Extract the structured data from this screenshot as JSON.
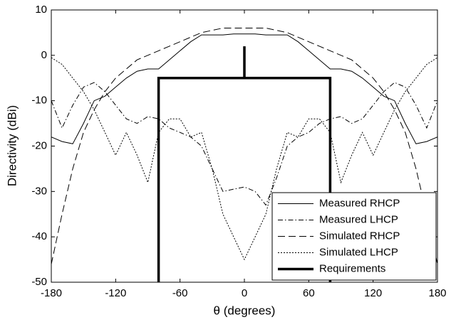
{
  "chart_data": {
    "type": "line",
    "xlabel": "θ (degrees)",
    "ylabel": "Directivity (dBi)",
    "xlim": [
      -180,
      180
    ],
    "ylim": [
      -50,
      10
    ],
    "xticks": [
      -180,
      -120,
      -60,
      0,
      60,
      120,
      180
    ],
    "yticks": [
      -50,
      -40,
      -30,
      -20,
      -10,
      0,
      10
    ],
    "grid": false,
    "legend": "lower right",
    "x": [
      -180,
      -170,
      -160,
      -150,
      -140,
      -130,
      -120,
      -110,
      -100,
      -90,
      -80,
      -70,
      -60,
      -50,
      -40,
      -30,
      -20,
      -10,
      0,
      10,
      20,
      30,
      40,
      50,
      60,
      70,
      80,
      90,
      100,
      110,
      120,
      130,
      140,
      150,
      160,
      170,
      180
    ],
    "series": [
      {
        "name": "Measured RHCP",
        "color": "#000000",
        "style": "solid",
        "values": [
          -18,
          -19,
          -19.5,
          -15,
          -10,
          -9,
          -7,
          -5,
          -3.5,
          -3,
          -3,
          -1,
          1,
          3,
          4.5,
          4.5,
          4.5,
          4.7,
          4.7,
          4.7,
          4.5,
          4.5,
          4.5,
          3,
          1,
          -1,
          -3,
          -3,
          -3.5,
          -5,
          -7,
          -9,
          -10,
          -15,
          -19.5,
          -19,
          -18
        ]
      },
      {
        "name": "Measured LHCP",
        "color": "#000000",
        "style": "dashdot",
        "values": [
          -10,
          -16,
          -11,
          -7,
          -6,
          -8,
          -11,
          -14,
          -15,
          -13.5,
          -14,
          -16,
          -17,
          -18,
          -20,
          -25,
          -30,
          -29.5,
          -29,
          -30,
          -33,
          -27,
          -20,
          -18,
          -17,
          -15,
          -14,
          -13.5,
          -15,
          -14,
          -11,
          -8,
          -6,
          -7,
          -11,
          -16,
          -10
        ]
      },
      {
        "name": "Simulated RHCP",
        "color": "#000000",
        "style": "dashed",
        "values": [
          -46,
          -35,
          -25,
          -17,
          -12,
          -8,
          -5,
          -3,
          -1,
          0,
          1,
          2,
          3,
          4,
          5,
          5.5,
          6,
          6,
          6,
          6,
          6,
          5.5,
          5,
          4,
          3,
          2,
          1,
          0,
          -1,
          -3,
          -5,
          -8,
          -12,
          -17,
          -25,
          -35,
          -46
        ]
      },
      {
        "name": "Simulated LHCP",
        "color": "#000000",
        "style": "dotted",
        "values": [
          -0.5,
          -2,
          -5,
          -8,
          -12,
          -17,
          -22,
          -17,
          -22,
          -28,
          -17,
          -14,
          -14,
          -18,
          -17,
          -25,
          -35,
          -40,
          -45,
          -40,
          -35,
          -25,
          -17,
          -18,
          -14,
          -14,
          -17,
          -28,
          -22,
          -17,
          -22,
          -17,
          -12,
          -8,
          -5,
          -2,
          -0.5
        ]
      },
      {
        "name": "Requirements",
        "color": "#000000",
        "style": "thick",
        "x": [
          -80,
          -80,
          80,
          80,
          0,
          0,
          0
        ],
        "values": [
          -50,
          -5,
          -5,
          -50,
          null,
          -5,
          2
        ]
      }
    ]
  }
}
